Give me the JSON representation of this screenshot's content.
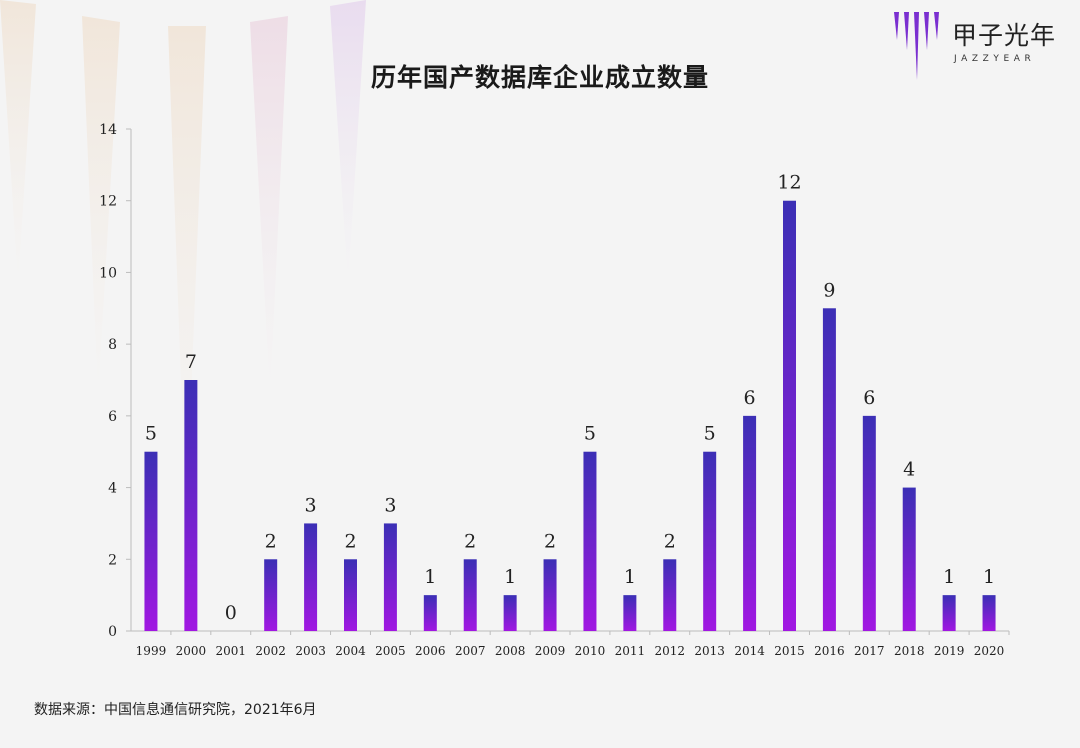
{
  "brand": {
    "name": "甲子光年",
    "sub": "JAZZYEAR",
    "colors": {
      "bar_top": "#3b2fb5",
      "bar_bottom": "#a117e2",
      "logo": "#7a2fd0"
    }
  },
  "source_note": "数据来源：中国信息通信研究院，2021年6月",
  "chart_data": {
    "type": "bar",
    "title": "历年国产数据库企业成立数量",
    "xlabel": "",
    "ylabel": "",
    "categories": [
      "1999",
      "2000",
      "2001",
      "2002",
      "2003",
      "2004",
      "2005",
      "2006",
      "2007",
      "2008",
      "2009",
      "2010",
      "2011",
      "2012",
      "2013",
      "2014",
      "2015",
      "2016",
      "2017",
      "2018",
      "2019",
      "2020"
    ],
    "values": [
      5,
      7,
      0,
      2,
      3,
      2,
      3,
      1,
      2,
      1,
      2,
      5,
      1,
      2,
      5,
      6,
      12,
      9,
      6,
      4,
      1,
      1
    ],
    "ylim": [
      0,
      14
    ],
    "yticks": [
      0,
      2,
      4,
      6,
      8,
      10,
      12,
      14
    ],
    "grid": false,
    "data_labels": true
  }
}
